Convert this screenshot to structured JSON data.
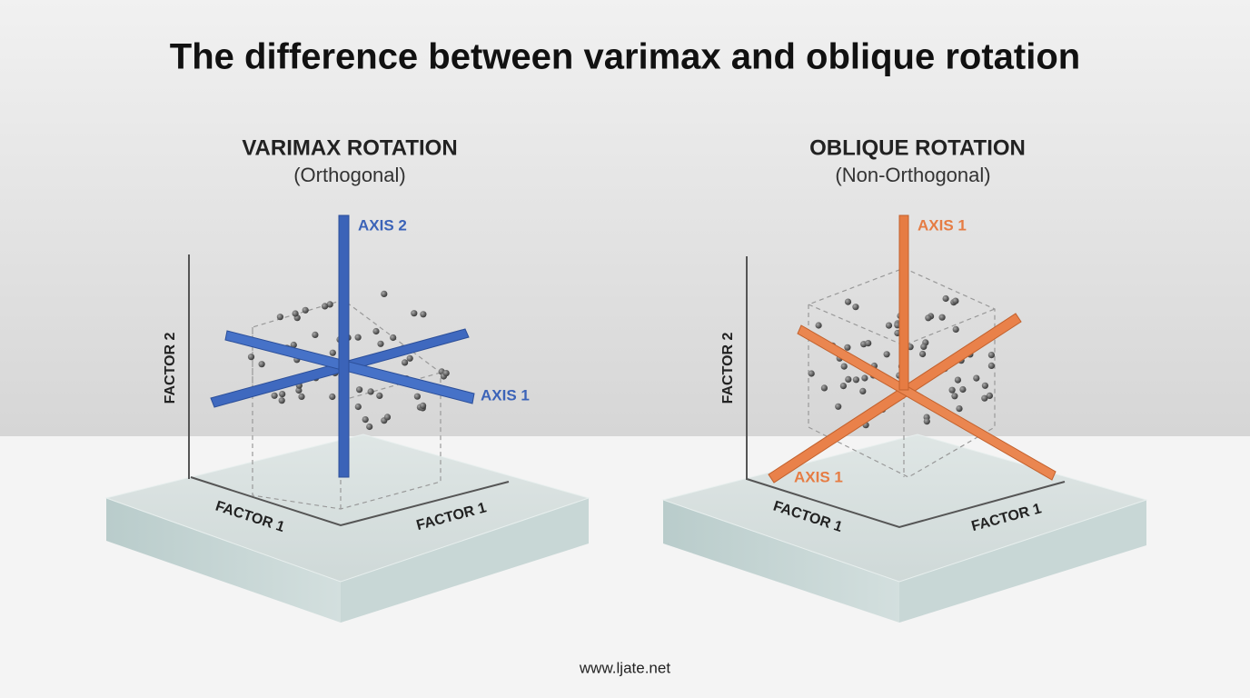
{
  "title": "The difference between varimax and oblique rotation",
  "panels": [
    {
      "heading": "VARIMAX ROTATION",
      "subheading": "(Orthogonal)",
      "axis_labels": [
        "AXIS 2",
        "AXIS 1"
      ],
      "factor_labels": [
        "FACTOR 2",
        "FACTOR 1",
        "FACTOR 1"
      ]
    },
    {
      "heading": "OBLIQUE ROTATION",
      "subheading": "(Non-Orthogonal)",
      "axis_labels": [
        "AXIS 1",
        "AXIS 1"
      ],
      "factor_labels": [
        "FACTOR 2",
        "FACTOR 1",
        "FACTOR 1"
      ]
    }
  ],
  "footer": "www.ljate.net"
}
